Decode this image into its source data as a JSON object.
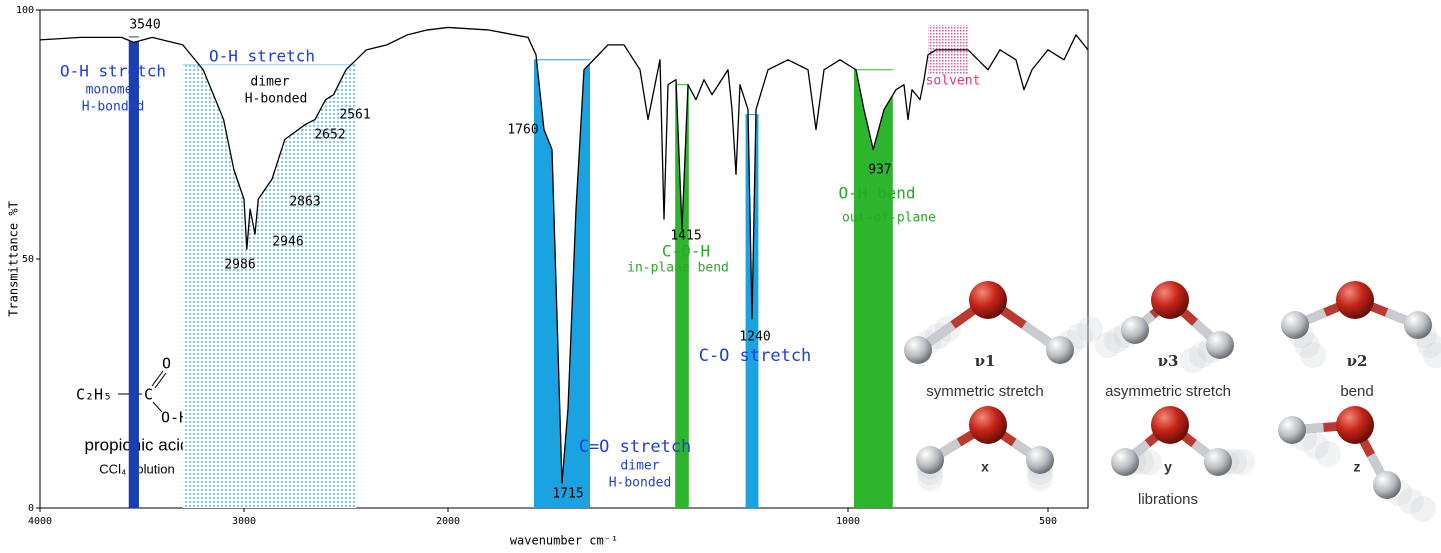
{
  "chart_data": {
    "type": "line",
    "xlabel": "wavenumber cm⁻¹",
    "ylabel": "Transmittance %T",
    "xlim": [
      4000,
      400
    ],
    "x_scale_break": 2000,
    "xticks": [
      4000,
      3000,
      2000,
      1000,
      500
    ],
    "ylim": [
      0,
      100
    ],
    "yticks": [
      0,
      50,
      100
    ],
    "color": "#000000",
    "x": [
      4000,
      3800,
      3600,
      3540,
      3450,
      3300,
      3200,
      3100,
      3050,
      3000,
      2986,
      2970,
      2946,
      2930,
      2880,
      2863,
      2800,
      2700,
      2652,
      2600,
      2561,
      2500,
      2400,
      2300,
      2200,
      2100,
      2000,
      1900,
      1800,
      1780,
      1760,
      1740,
      1715,
      1700,
      1680,
      1660,
      1600,
      1560,
      1520,
      1500,
      1470,
      1460,
      1450,
      1430,
      1415,
      1400,
      1380,
      1360,
      1340,
      1300,
      1290,
      1280,
      1270,
      1250,
      1240,
      1230,
      1200,
      1150,
      1100,
      1080,
      1060,
      1020,
      980,
      960,
      937,
      910,
      880,
      860,
      850,
      840,
      820,
      810,
      800,
      780,
      700,
      650,
      620,
      580,
      560,
      540,
      500,
      460,
      430,
      400
    ],
    "values": [
      94,
      94.5,
      94.5,
      93.5,
      94.5,
      93,
      88,
      78,
      68,
      62,
      52,
      60,
      55,
      62,
      65,
      66,
      74,
      77,
      78,
      82,
      83,
      88,
      92,
      93,
      95,
      96,
      96.5,
      96,
      94.5,
      91,
      76,
      72,
      5,
      20,
      60,
      88,
      93,
      93,
      88,
      78,
      90,
      58,
      85,
      86,
      56,
      85,
      82,
      86,
      83,
      88,
      80,
      67,
      85,
      80,
      38,
      80,
      88,
      90,
      88,
      76,
      88,
      90,
      88,
      80,
      72,
      80,
      84,
      85,
      78,
      84,
      82,
      86,
      91,
      92,
      92,
      88,
      92,
      90,
      84,
      88,
      92,
      90,
      95,
      92
    ],
    "highlights": [
      {
        "from": 3300,
        "to": 2450,
        "level": 89,
        "color": "#8fd3f0",
        "pattern": "dots"
      },
      {
        "from": 3565,
        "to": 3515,
        "level": 94.6,
        "color": "#1a3fb0"
      },
      {
        "from": 1785,
        "to": 1645,
        "level": 90,
        "color": "#1aa3e0"
      },
      {
        "from": 1432,
        "to": 1398,
        "level": 85,
        "color": "#2db52d"
      },
      {
        "from": 1256,
        "to": 1224,
        "level": 79,
        "color": "#1aa3e0"
      },
      {
        "from": 985,
        "to": 888,
        "level": 88,
        "color": "#2db52d"
      },
      {
        "from": 800,
        "to": 700,
        "low": 87,
        "high": 97,
        "color": "#e8559a",
        "pattern": "checks"
      }
    ],
    "annotations": [
      "3540",
      "O-H stretch",
      "monomer",
      "H-bonded",
      "O-H stretch",
      "dimer",
      "H-bonded",
      "2561",
      "2652",
      "1760",
      "2863",
      "2946",
      "2986",
      "1415",
      "C-O-H",
      "in-plane bend",
      "937",
      "O-H bend",
      "out-of-plane",
      "solvent",
      "1240",
      "C-O stretch",
      "C=O stretch",
      "dimer",
      "H-bonded",
      "1715"
    ],
    "compound": {
      "formula": [
        "C₂H₅",
        "C",
        "O",
        "O-H"
      ],
      "name": "propionic acid",
      "solvent": "CCl₄ solution"
    }
  },
  "water_modes": [
    {
      "symbol": "ν1",
      "name": "symmetric stretch"
    },
    {
      "symbol": "ν3",
      "name": "asymmetric stretch"
    },
    {
      "symbol": "ν2",
      "name": "bend"
    }
  ],
  "librations": {
    "axes": [
      "x",
      "y",
      "z"
    ],
    "label": "librations"
  }
}
